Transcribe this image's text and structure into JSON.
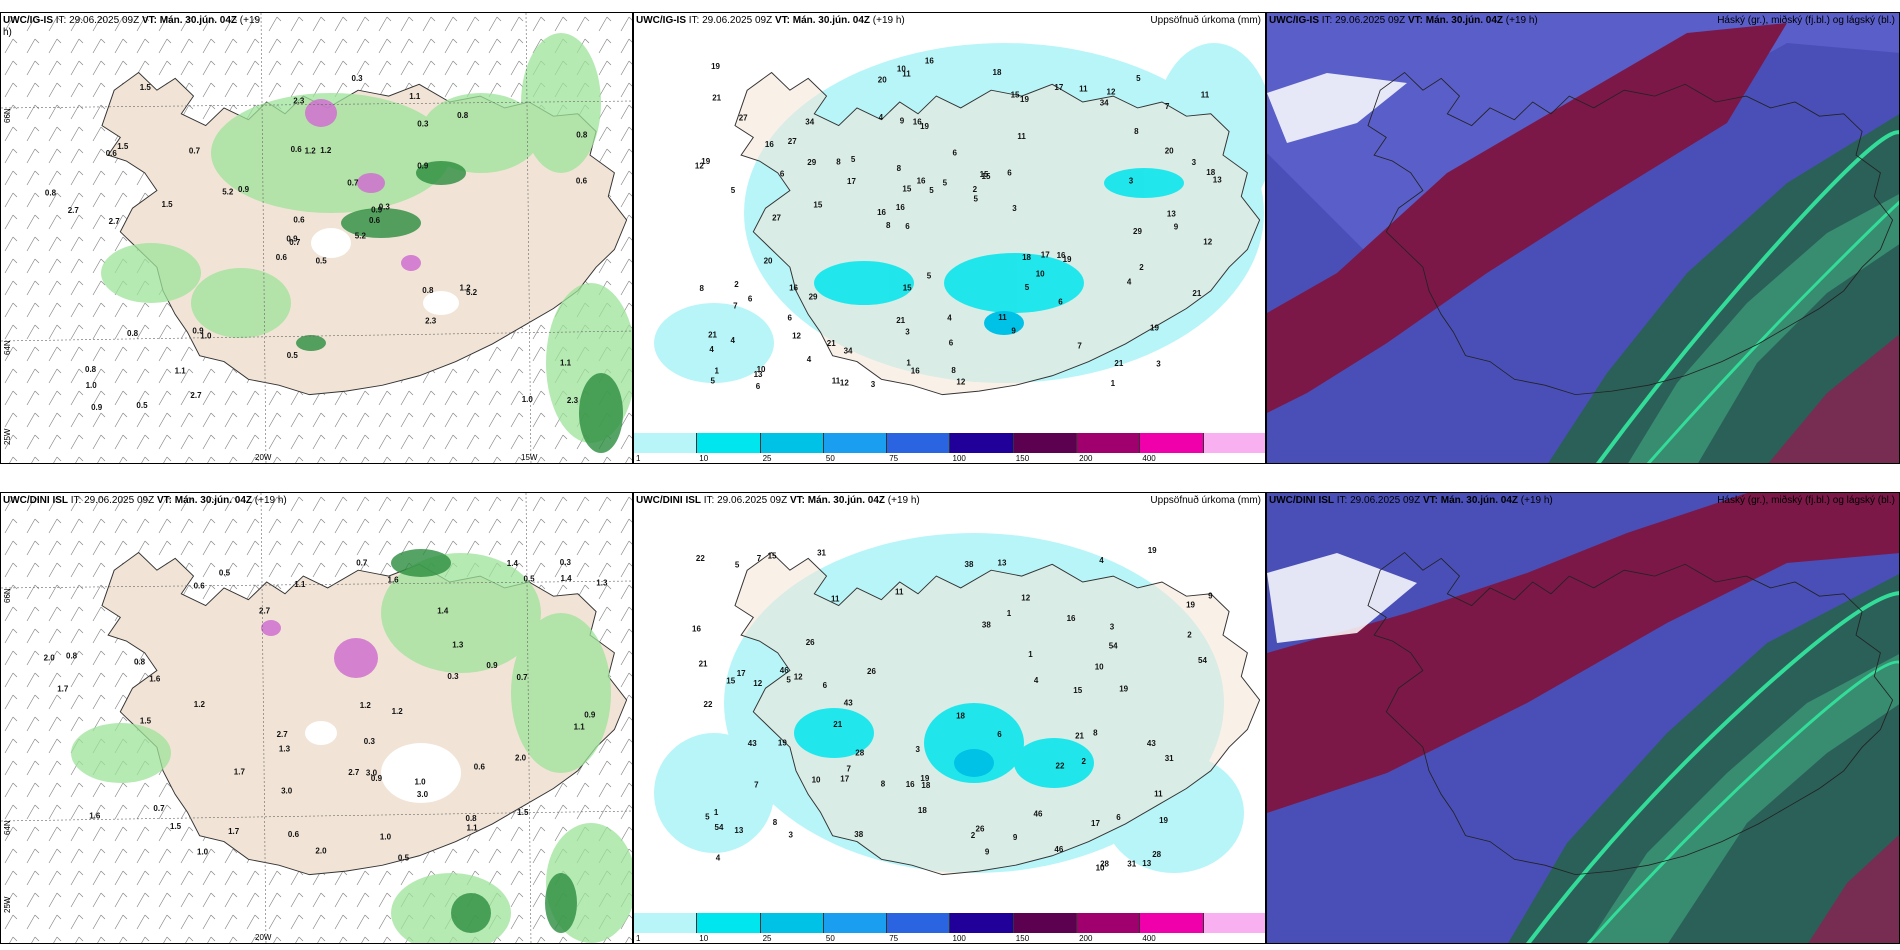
{
  "panels": {
    "p1": {
      "title_model": "UWC/IG-IS",
      "title_it": "IT: 29.06.2025 09Z",
      "title_vt": "VT: Mán. 30.jún. 04Z",
      "title_lead": "(+19",
      "title_wrap": "h)"
    },
    "p2": {
      "title_model": "UWC/IG-IS",
      "title_it": "IT: 29.06.2025 09Z",
      "title_vt": "VT: Mán. 30.jún. 04Z",
      "title_lead": "(+19 h)",
      "right": "Uppsöfnuð úrkoma (mm)"
    },
    "p3": {
      "title_model": "UWC/IG-IS",
      "title_it": "IT: 29.06.2025 09Z",
      "title_vt": "VT: Mán. 30.jún. 04Z",
      "title_lead": "(+19 h)",
      "right": "Háský (gr.), miðský (fj.bl.) og lágský (bl.)"
    },
    "p4": {
      "title_model": "UWC/DINI ISL",
      "title_it": "IT: 29.06.2025 09Z",
      "title_vt": "VT: Mán. 30.jún. 04Z",
      "title_lead": "(+19 h)"
    },
    "p5": {
      "title_model": "UWC/DINI ISL",
      "title_it": "IT: 29.06.2025 09Z",
      "title_vt": "VT: Mán. 30.jún. 04Z",
      "title_lead": "(+19 h)",
      "right": "Uppsöfnuð úrkoma (mm)"
    },
    "p6": {
      "title_model": "UWC/DINI ISL",
      "title_it": "IT: 29.06.2025 09Z",
      "title_vt": "VT: Mán. 30.jún. 04Z",
      "title_lead": "(+19 h)",
      "right": "Háský (gr.), miðský (fj.bl.) og lágský (bl.)"
    }
  },
  "gridlabels": {
    "lat66": "66N",
    "lat64": "64N",
    "lon25": "25W",
    "lon20": "20W",
    "lon15": "15W"
  },
  "colorbar": {
    "ticks": [
      "1",
      "10",
      "25",
      "50",
      "75",
      "100",
      "150",
      "200",
      "400"
    ],
    "colors": [
      "#b8f5f8",
      "#00e6ee",
      "#00c2e6",
      "#1a9ff0",
      "#2b64e0",
      "#200099",
      "#5c0050",
      "#a0006e",
      "#f000aa",
      "#f8b0f0"
    ]
  },
  "numbers_top_precip": [
    "3",
    "5",
    "7",
    "8",
    "11",
    "10",
    "9",
    "6",
    "6",
    "5",
    "4",
    "12",
    "16",
    "15",
    "19",
    "27",
    "11",
    "13",
    "18",
    "20",
    "16",
    "21",
    "15",
    "34",
    "17",
    "29",
    "21",
    "19",
    "16",
    "12",
    "8",
    "6",
    "5",
    "4",
    "3",
    "2",
    "1"
  ],
  "numbers_top_rain": [
    "0.5",
    "0.6",
    "0.7",
    "0.8",
    "0.9",
    "1.0",
    "1.1",
    "1.2",
    "0.3",
    "5.2",
    "1.5",
    "2.3",
    "2.7",
    "0.8",
    "0.6",
    "0.9"
  ],
  "numbers_bot_precip": [
    "3",
    "5",
    "7",
    "8",
    "13",
    "11",
    "16",
    "21",
    "17",
    "15",
    "19",
    "38",
    "22",
    "28",
    "43",
    "46",
    "18",
    "54",
    "19",
    "26",
    "31",
    "12",
    "9",
    "10",
    "6",
    "4",
    "2",
    "1"
  ],
  "numbers_bot_rain": [
    "0.5",
    "0.6",
    "0.7",
    "0.8",
    "0.9",
    "1.0",
    "1.1",
    "1.2",
    "1.3",
    "1.5",
    "1.6",
    "2.0",
    "2.7",
    "3.0",
    "0.3",
    "1.4",
    "1.7"
  ]
}
